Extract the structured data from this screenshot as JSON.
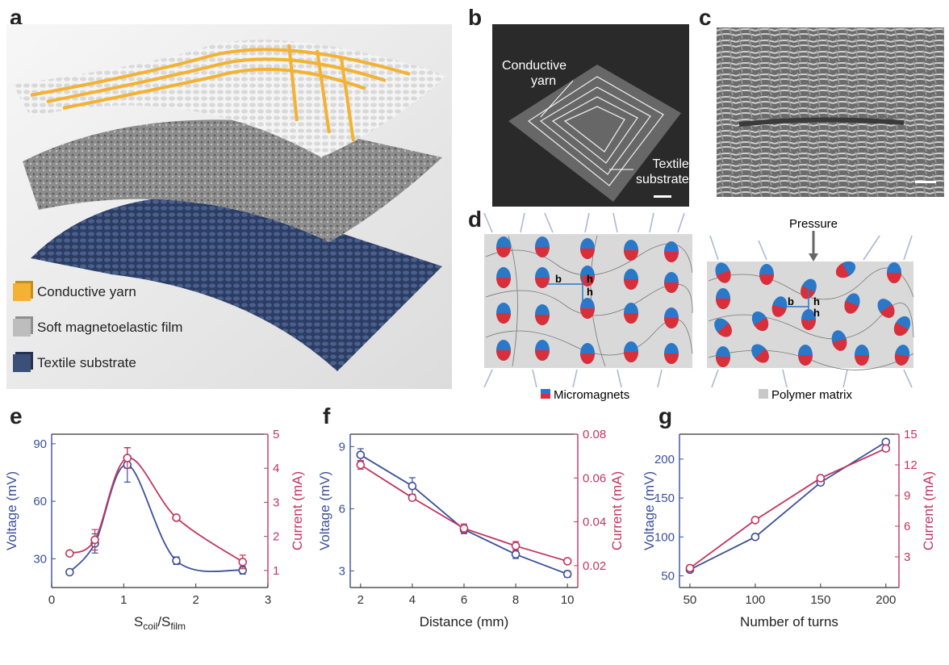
{
  "panels": {
    "a": "a",
    "b": "b",
    "c": "c",
    "d": "d",
    "e": "e",
    "f": "f",
    "g": "g"
  },
  "panel_a": {
    "legend": [
      {
        "label": "Conductive yarn",
        "color": "#f2b233"
      },
      {
        "label": "Soft magnetoelastic film",
        "color": "#a9a9a9"
      },
      {
        "label": "Textile substrate",
        "color": "#3b4f78"
      }
    ]
  },
  "panel_b": {
    "label_yarn": "Conductive\nyarn",
    "label_yarn_1": "Conductive",
    "label_yarn_2": "yarn",
    "label_sub_1": "Textile",
    "label_sub_2": "substrate"
  },
  "panel_d": {
    "pressure": "Pressure",
    "b": "b",
    "h": "h",
    "legend_magnets": "Micromagnets",
    "legend_matrix": "Polymer matrix"
  },
  "colors": {
    "voltage": "#3a4f9a",
    "current": "#c0365f"
  },
  "chart_data": [
    {
      "type": "line",
      "panel": "e",
      "xlabel_main": "S",
      "xlabel_sub1": "coil",
      "xlabel_mid": "/S",
      "xlabel_sub2": "film",
      "ylabel": "Voltage (mV)",
      "y2label": "Current (mA)",
      "xlim": [
        0,
        3
      ],
      "ylim": [
        15,
        95
      ],
      "y2lim": [
        0.5,
        5
      ],
      "xticks": [
        "0",
        "1",
        "2",
        "3"
      ],
      "yticks": [
        "30",
        "60",
        "90"
      ],
      "y2ticks": [
        "1",
        "2",
        "3",
        "4",
        "5"
      ],
      "series": [
        {
          "name": "Voltage",
          "axis": "left",
          "x": [
            0.25,
            0.6,
            1.05,
            1.73,
            2.65
          ],
          "y": [
            23,
            38,
            79,
            29,
            24
          ],
          "err": [
            0,
            5,
            9,
            2,
            2
          ]
        },
        {
          "name": "Current",
          "axis": "right",
          "x": [
            0.25,
            0.6,
            1.05,
            1.73,
            2.65
          ],
          "y": [
            1.5,
            1.9,
            4.3,
            2.55,
            1.25
          ],
          "err": [
            0,
            0.3,
            0.3,
            0,
            0.2
          ]
        }
      ]
    },
    {
      "type": "line",
      "panel": "f",
      "xlabel": "Distance (mm)",
      "ylabel": "Voltage (mV)",
      "y2label": "Current (mA)",
      "xlim": [
        1.6,
        10.4
      ],
      "ylim": [
        2.2,
        9.6
      ],
      "y2lim": [
        0.01,
        0.08
      ],
      "xticks": [
        "2",
        "4",
        "6",
        "8",
        "10"
      ],
      "yticks": [
        "3",
        "6",
        "9"
      ],
      "y2ticks": [
        "0.02",
        "0.04",
        "0.06",
        "0.08"
      ],
      "series": [
        {
          "name": "Voltage",
          "axis": "left",
          "x": [
            2,
            4,
            6,
            8,
            10
          ],
          "y": [
            8.6,
            7.1,
            5.0,
            3.8,
            2.85
          ],
          "err": [
            0.3,
            0.4,
            0.2,
            0.2,
            0.15
          ]
        },
        {
          "name": "Current",
          "axis": "right",
          "x": [
            2,
            4,
            6,
            8,
            10
          ],
          "y": [
            0.066,
            0.051,
            0.037,
            0.029,
            0.022
          ],
          "err": [
            0.002,
            0.001,
            0.002,
            0.002,
            0.001
          ]
        }
      ]
    },
    {
      "type": "line",
      "panel": "g",
      "xlabel": "Number of turns",
      "ylabel": "Voltage (mV)",
      "y2label": "Current (mA)",
      "xlim": [
        42,
        210
      ],
      "ylim": [
        35,
        232
      ],
      "y2lim": [
        0,
        15
      ],
      "xticks": [
        "50",
        "100",
        "150",
        "200"
      ],
      "yticks": [
        "50",
        "100",
        "150",
        "200"
      ],
      "y2ticks": [
        "3",
        "6",
        "9",
        "12",
        "15"
      ],
      "series": [
        {
          "name": "Voltage",
          "axis": "left",
          "x": [
            50,
            100,
            150,
            200
          ],
          "y": [
            58,
            100,
            170,
            222
          ],
          "err": [
            0,
            0,
            3,
            3
          ]
        },
        {
          "name": "Current",
          "axis": "right",
          "x": [
            50,
            100,
            150,
            200
          ],
          "y": [
            1.9,
            6.6,
            10.7,
            13.6
          ],
          "err": [
            0,
            0,
            0.2,
            0.2
          ]
        }
      ]
    }
  ]
}
